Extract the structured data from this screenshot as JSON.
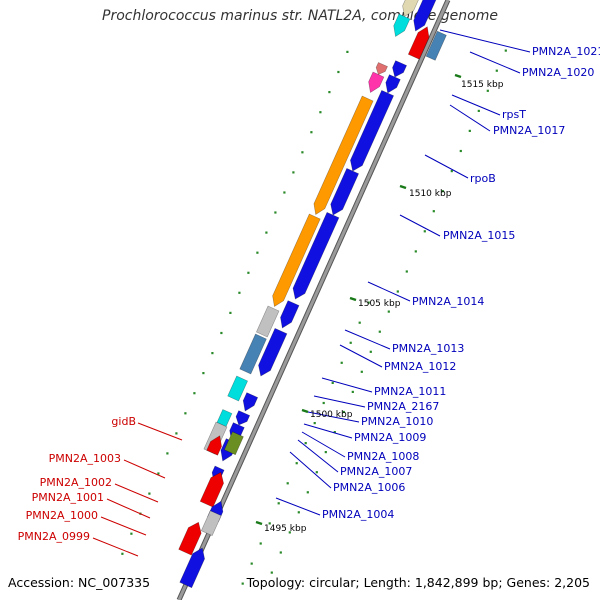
{
  "title": "Prochlorococcus marinus str. NATL2A, complete genome",
  "accession_text": "Accession: NC_007335",
  "topology_text": "Topology: circular; Length: 1,842,899 bp; Genes: 2,205",
  "colors": {
    "backbone": "#888888",
    "backbone_edge": "#555555",
    "tick": "#1a7a1a",
    "dot": "#2a8a2a",
    "label_right": "#0000bb",
    "label_left": "#cc0000",
    "blue": "#1010e0",
    "red": "#ee0000",
    "orange": "#ff9900",
    "steelblue": "#4682b4",
    "gray": "#c0c0c0",
    "beige": "#e0d8b0",
    "cyan": "#00dddd",
    "magenta": "#ff33aa",
    "salmon": "#e07070",
    "olive": "#6b8e23"
  },
  "kbp_labels": [
    "1515 kbp",
    "1510 kbp",
    "1505 kbp",
    "1500 kbp",
    "1495 kbp"
  ],
  "right_labels": [
    "PMN2A_1021",
    "PMN2A_1020",
    "rpsT",
    "PMN2A_1017",
    "rpoB",
    "PMN2A_1015",
    "PMN2A_1014",
    "PMN2A_1013",
    "PMN2A_1012",
    "PMN2A_1011",
    "PMN2A_2167",
    "PMN2A_1010",
    "PMN2A_1009",
    "PMN2A_1008",
    "PMN2A_1007",
    "PMN2A_1006",
    "PMN2A_1004"
  ],
  "left_labels": [
    "gidB",
    "PMN2A_1003",
    "PMN2A_1002",
    "PMN2A_1001",
    "PMN2A_1000",
    "PMN2A_0999"
  ]
}
